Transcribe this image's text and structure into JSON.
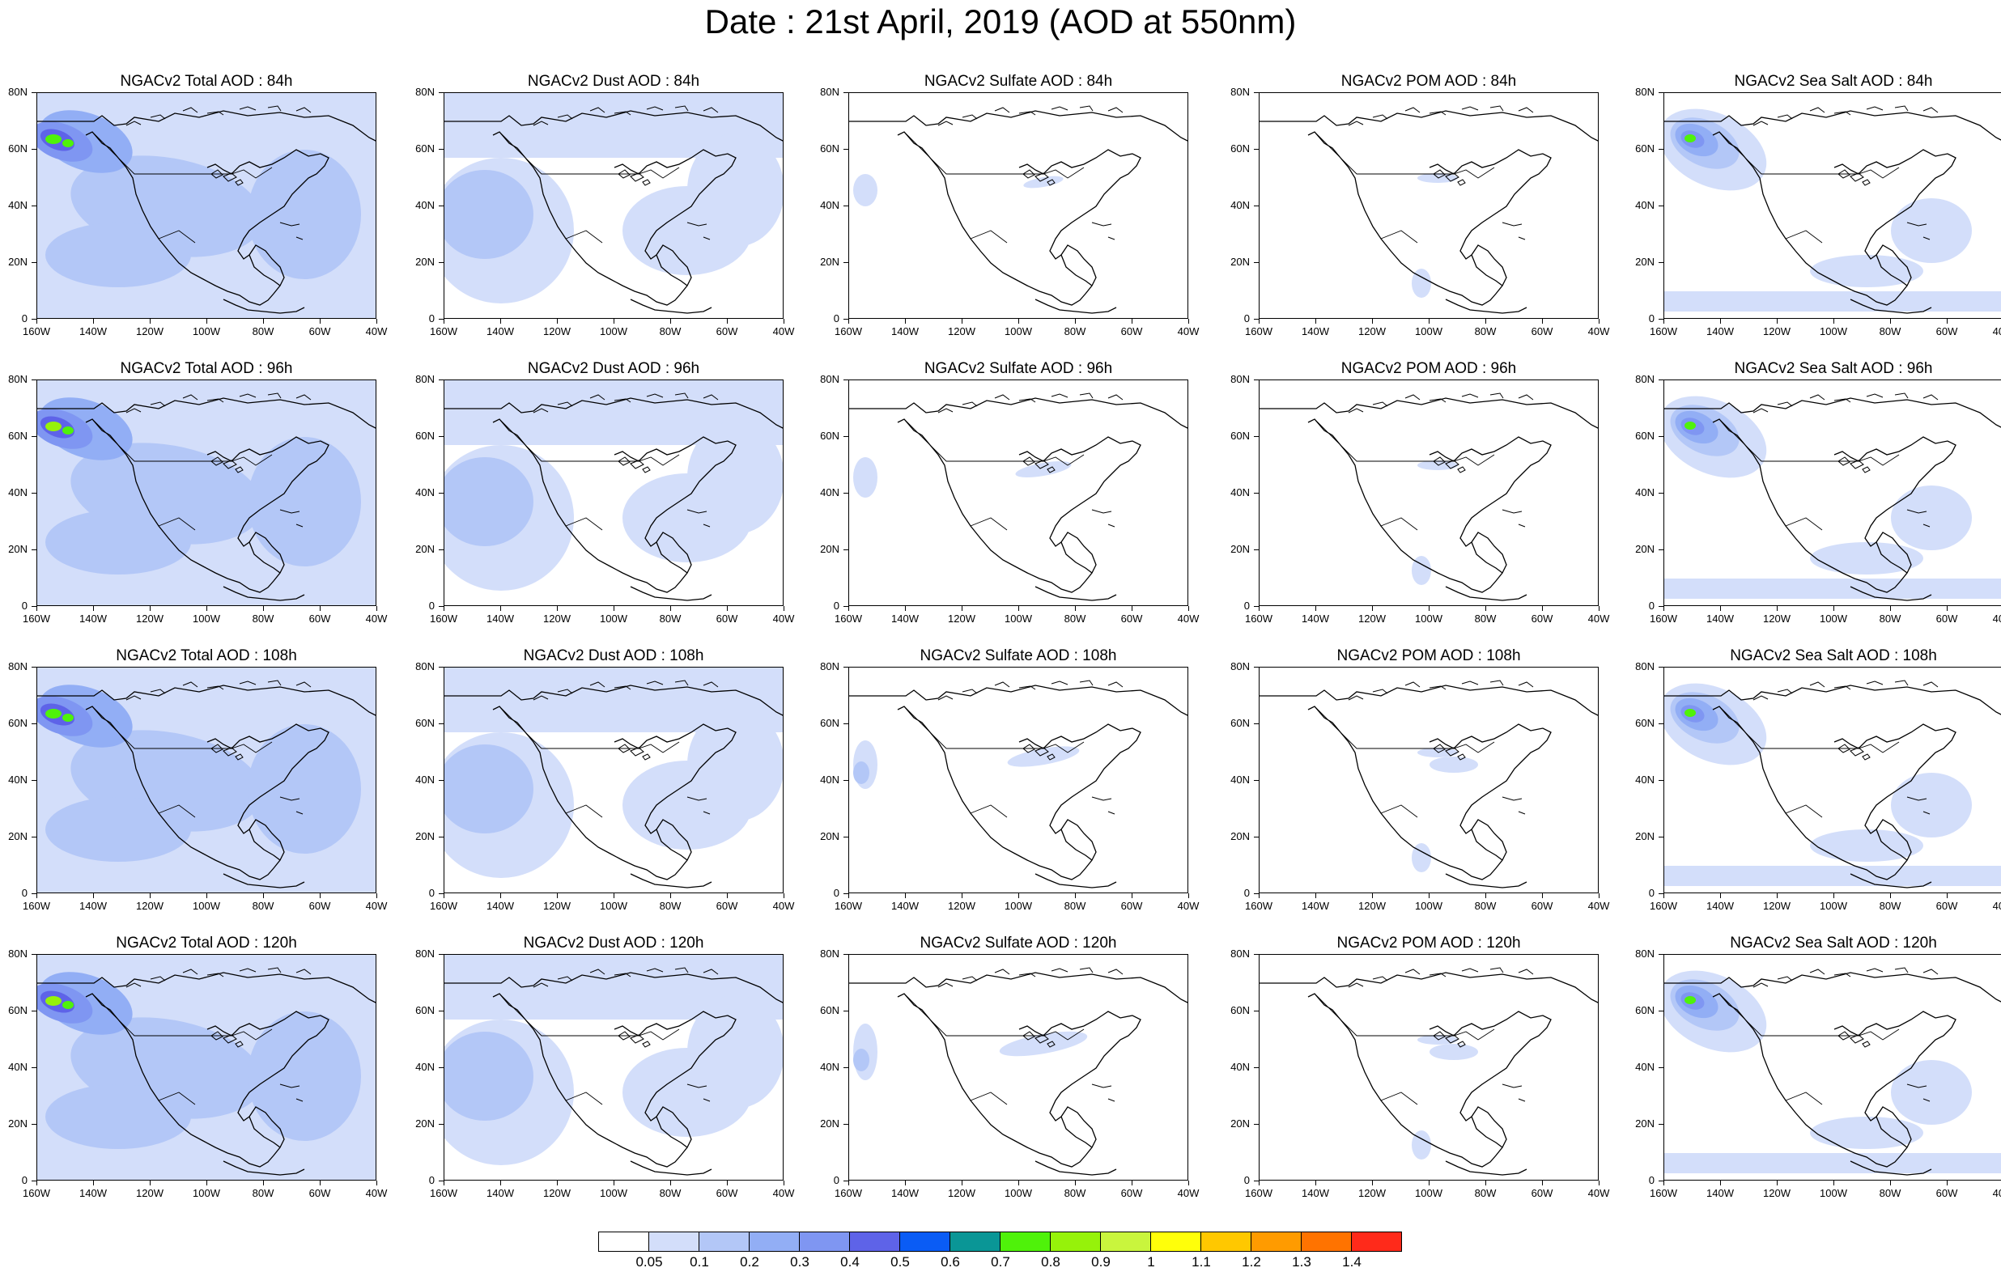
{
  "title": "Date : 21st April, 2019 (AOD at 550nm)",
  "y_ticks": [
    "80N",
    "60N",
    "40N",
    "20N",
    "0"
  ],
  "x_ticks": [
    "160W",
    "140W",
    "120W",
    "100W",
    "80W",
    "60W",
    "40W"
  ],
  "panels": [
    {
      "title": "NGACv2 Total AOD : 84h",
      "field": "total"
    },
    {
      "title": "NGACv2 Dust AOD : 84h",
      "field": "dust"
    },
    {
      "title": "NGACv2 Sulfate AOD : 84h",
      "field": "sulfate"
    },
    {
      "title": "NGACv2 POM AOD : 84h",
      "field": "pom"
    },
    {
      "title": "NGACv2 Sea Salt AOD : 84h",
      "field": "seasalt"
    },
    {
      "title": "NGACv2 Total AOD : 96h",
      "field": "total"
    },
    {
      "title": "NGACv2 Dust AOD : 96h",
      "field": "dust"
    },
    {
      "title": "NGACv2 Sulfate AOD : 96h",
      "field": "sulfate"
    },
    {
      "title": "NGACv2 POM AOD : 96h",
      "field": "pom"
    },
    {
      "title": "NGACv2 Sea Salt AOD : 96h",
      "field": "seasalt"
    },
    {
      "title": "NGACv2 Total AOD : 108h",
      "field": "total"
    },
    {
      "title": "NGACv2 Dust AOD : 108h",
      "field": "dust"
    },
    {
      "title": "NGACv2 Sulfate AOD : 108h",
      "field": "sulfate"
    },
    {
      "title": "NGACv2 POM AOD : 108h",
      "field": "pom"
    },
    {
      "title": "NGACv2 Sea Salt AOD : 108h",
      "field": "seasalt"
    },
    {
      "title": "NGACv2 Total AOD : 120h",
      "field": "total"
    },
    {
      "title": "NGACv2 Dust AOD : 120h",
      "field": "dust"
    },
    {
      "title": "NGACv2 Sulfate AOD : 120h",
      "field": "sulfate"
    },
    {
      "title": "NGACv2 POM AOD : 120h",
      "field": "pom"
    },
    {
      "title": "NGACv2 Sea Salt  AOD : 120h",
      "field": "seasalt"
    }
  ],
  "colorbar": {
    "colors": [
      "#ffffff",
      "#d3defa",
      "#b3c7f7",
      "#92aef5",
      "#7f96f2",
      "#5e63e8",
      "#0a5cf5",
      "#0a9696",
      "#4ff20a",
      "#96f20a",
      "#c9f53d",
      "#ffff0a",
      "#ffc800",
      "#ff9b00",
      "#ff7300",
      "#ff2a1a"
    ],
    "labels": [
      "0.05",
      "0.1",
      "0.2",
      "0.3",
      "0.4",
      "0.5",
      "0.6",
      "0.7",
      "0.8",
      "0.9",
      "1",
      "1.1",
      "1.2",
      "1.3",
      "1.4"
    ]
  }
}
